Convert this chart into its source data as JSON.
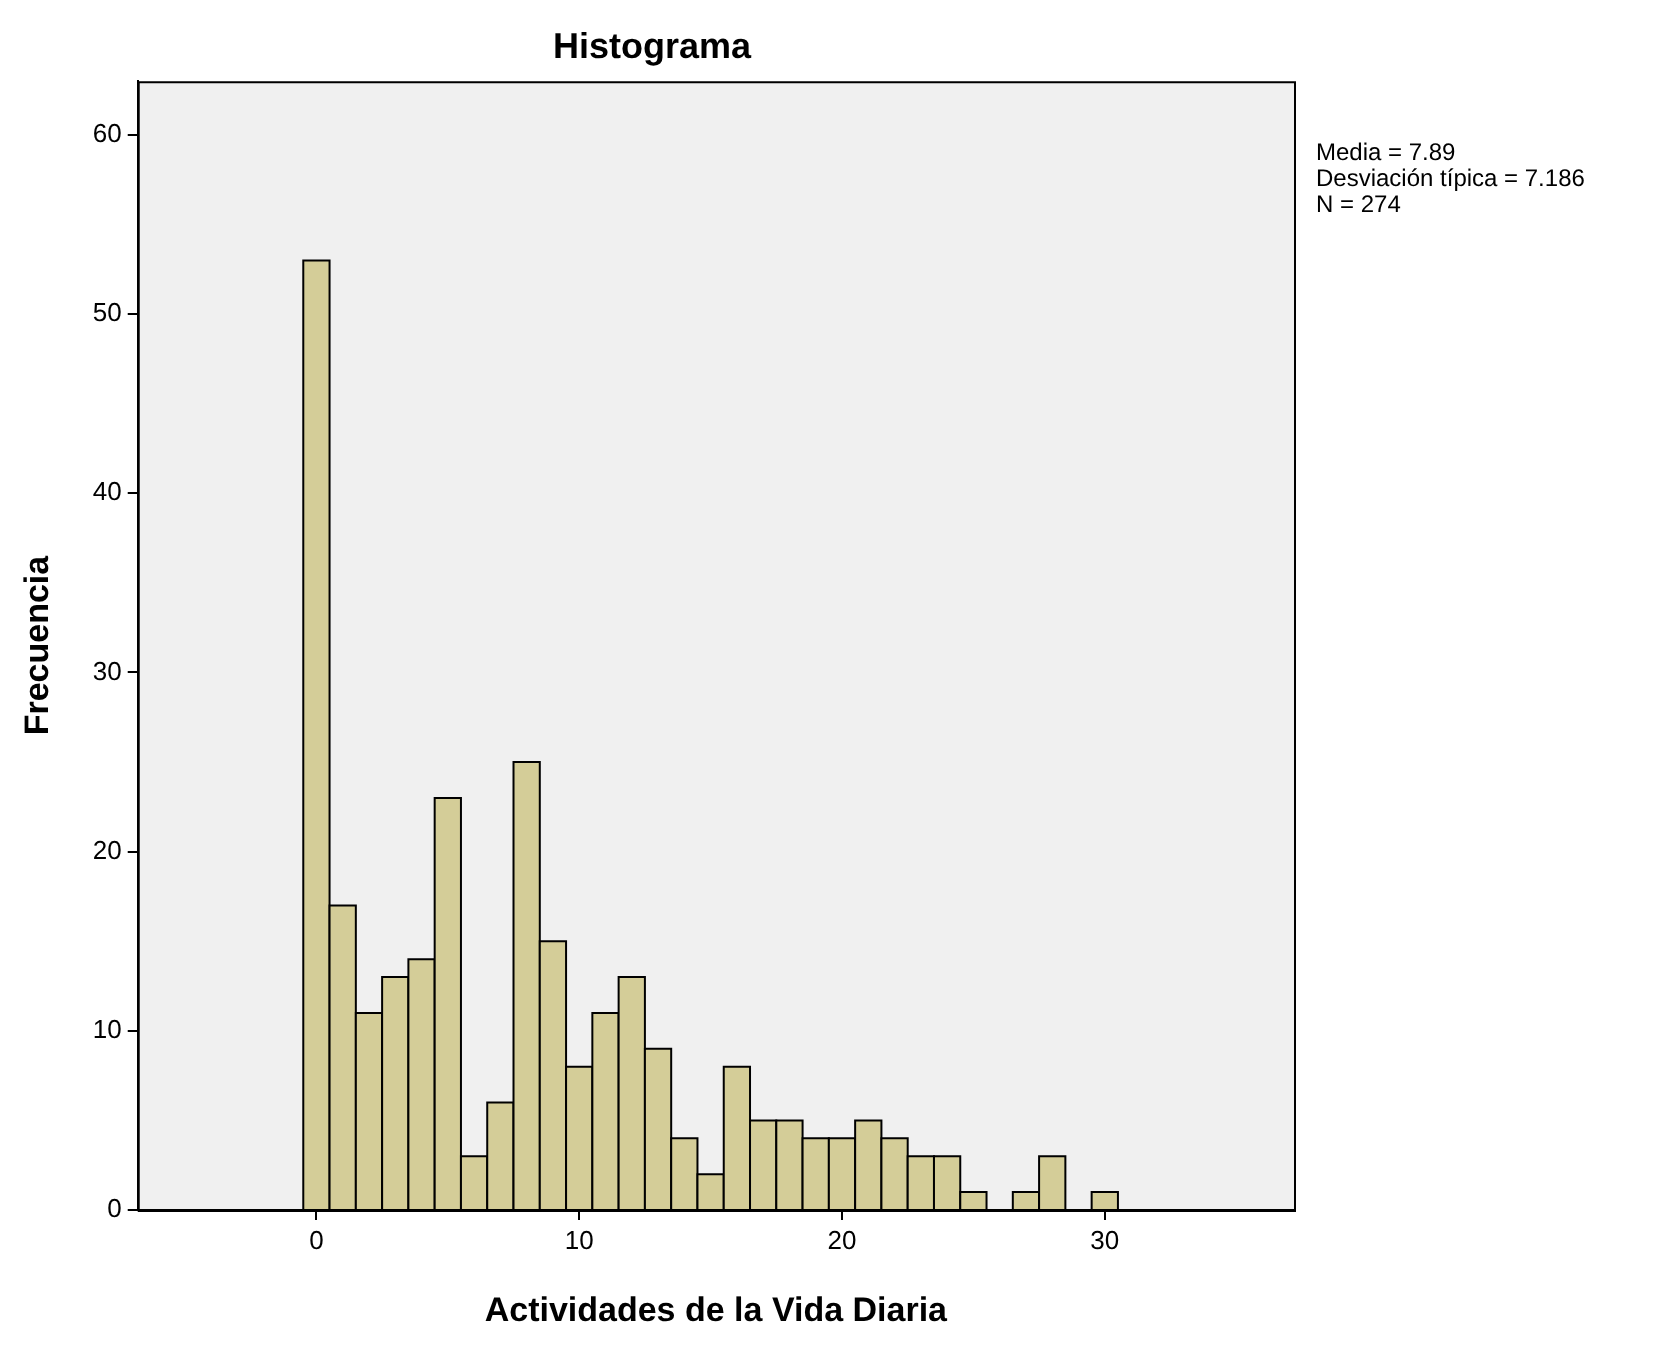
{
  "chart_data": {
    "type": "histogram",
    "title": "Histograma",
    "xlabel": "Actividades de la Vida Diaria",
    "ylabel": "Frecuencia",
    "bins": [
      -0.5,
      0.5,
      1.5,
      2.5,
      3.5,
      4.5,
      5.5,
      6.5,
      7.5,
      8.5,
      9.5,
      10.5,
      11.5,
      12.5,
      13.5,
      14.5,
      15.5,
      16.5,
      17.5,
      18.5,
      19.5,
      20.5,
      21.5,
      22.5,
      23.5,
      24.5,
      25.5,
      26.5,
      27.5,
      28.5,
      29.5,
      30.5
    ],
    "values": [
      53,
      17,
      11,
      13,
      14,
      23,
      3,
      6,
      25,
      15,
      8,
      11,
      13,
      9,
      4,
      2,
      8,
      5,
      5,
      4,
      4,
      5,
      4,
      3,
      3,
      1,
      0,
      1,
      3,
      0,
      1
    ],
    "color": "#d4cd98",
    "xlim": [
      -6.8,
      37.2
    ],
    "xticks": [
      0,
      10,
      20,
      30
    ],
    "ylim": [
      0,
      63
    ],
    "yticks": [
      0,
      10,
      20,
      30,
      40,
      50,
      60
    ],
    "grid": false,
    "legend": false,
    "annotations": [
      "Media = 7.89",
      "Desviación típica = 7.186",
      "N = 274"
    ]
  }
}
